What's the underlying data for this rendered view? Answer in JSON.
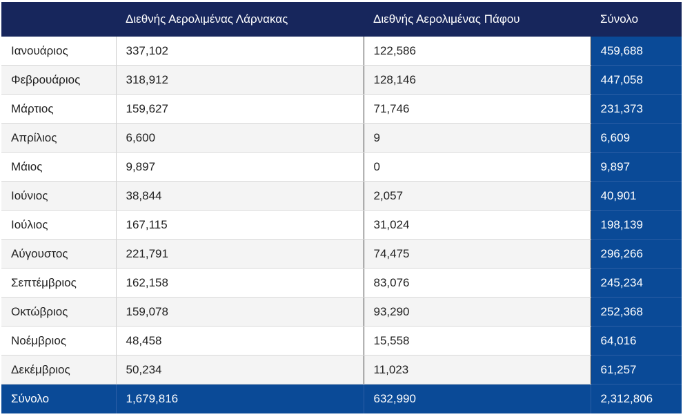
{
  "header": {
    "month": "",
    "larnaca": "Διεθνής Αερολιμένας Λάρνακας",
    "paphos": "Διεθνής Αερολιμένας Πάφου",
    "total": "Σύνολο"
  },
  "rows": [
    {
      "month": "Ιανουάριος",
      "larnaca": "337,102",
      "paphos": "122,586",
      "total": "459,688"
    },
    {
      "month": "Φεβρουάριος",
      "larnaca": "318,912",
      "paphos": "128,146",
      "total": "447,058"
    },
    {
      "month": "Μάρτιος",
      "larnaca": "159,627",
      "paphos": "71,746",
      "total": "231,373"
    },
    {
      "month": "Απρίλιος",
      "larnaca": "6,600",
      "paphos": "9",
      "total": "6,609"
    },
    {
      "month": "Μάιος",
      "larnaca": "9,897",
      "paphos": "0",
      "total": "9,897"
    },
    {
      "month": "Ιούνιος",
      "larnaca": "38,844",
      "paphos": "2,057",
      "total": "40,901"
    },
    {
      "month": "Ιούλιος",
      "larnaca": "167,115",
      "paphos": "31,024",
      "total": "198,139"
    },
    {
      "month": "Αύγουστος",
      "larnaca": "221,791",
      "paphos": "74,475",
      "total": "296,266"
    },
    {
      "month": "Σεπτέμβριος",
      "larnaca": "162,158",
      "paphos": "83,076",
      "total": "245,234"
    },
    {
      "month": "Οκτώβριος",
      "larnaca": "159,078",
      "paphos": "93,290",
      "total": "252,368"
    },
    {
      "month": "Νοέμβριος",
      "larnaca": "48,458",
      "paphos": "15,558",
      "total": "64,016"
    },
    {
      "month": "Δεκέμβριος",
      "larnaca": "50,234",
      "paphos": "11,023",
      "total": "61,257"
    }
  ],
  "footer": {
    "label": "Σύνολο",
    "larnaca": "1,679,816",
    "paphos": "632,990",
    "total": "2,312,806"
  },
  "colors": {
    "header_bg": "#17265c",
    "total_bg": "#0a4a97",
    "stripe_bg": "#f4f4f4"
  }
}
